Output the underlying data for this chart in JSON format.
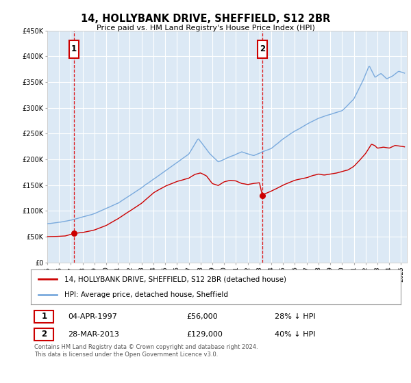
{
  "title": "14, HOLLYBANK DRIVE, SHEFFIELD, S12 2BR",
  "subtitle": "Price paid vs. HM Land Registry's House Price Index (HPI)",
  "legend_line1": "14, HOLLYBANK DRIVE, SHEFFIELD, S12 2BR (detached house)",
  "legend_line2": "HPI: Average price, detached house, Sheffield",
  "footnote": "Contains HM Land Registry data © Crown copyright and database right 2024.\nThis data is licensed under the Open Government Licence v3.0.",
  "purchase1_date": 1997.26,
  "purchase1_price": 56000,
  "purchase1_label": "04-APR-1997",
  "purchase1_pct": "28% ↓ HPI",
  "purchase2_date": 2013.23,
  "purchase2_price": 129000,
  "purchase2_label": "28-MAR-2013",
  "purchase2_pct": "40% ↓ HPI",
  "xmin": 1995.0,
  "xmax": 2025.5,
  "ymin": 0,
  "ymax": 450000,
  "yticks": [
    0,
    50000,
    100000,
    150000,
    200000,
    250000,
    300000,
    350000,
    400000,
    450000
  ],
  "ytick_labels": [
    "£0",
    "£50K",
    "£100K",
    "£150K",
    "£200K",
    "£250K",
    "£300K",
    "£350K",
    "£400K",
    "£450K"
  ],
  "background_color": "#dce9f5",
  "red_line_color": "#cc0000",
  "blue_line_color": "#7aaadd",
  "grid_color": "#ffffff",
  "vline_color": "#dd0000",
  "box_color": "#cc0000",
  "xticks": [
    1995,
    1996,
    1997,
    1998,
    1999,
    2000,
    2001,
    2002,
    2003,
    2004,
    2005,
    2006,
    2007,
    2008,
    2009,
    2010,
    2011,
    2012,
    2013,
    2014,
    2015,
    2016,
    2017,
    2018,
    2019,
    2020,
    2021,
    2022,
    2023,
    2024,
    2025
  ]
}
